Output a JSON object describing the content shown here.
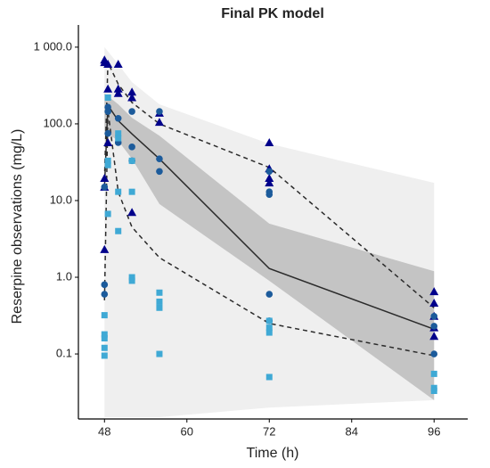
{
  "chart_data": {
    "type": "vpc",
    "title": "Final PK model",
    "xlabel": "Time (h)",
    "ylabel": "Reserpine observations (mg/L)",
    "xlim": [
      44.2,
      100.9
    ],
    "xticks": [
      48,
      60,
      72,
      84,
      96
    ],
    "ylim": [
      0.0142,
      1490
    ],
    "ylog": true,
    "yticks": [
      {
        "value": 1000,
        "label": "1 000.0"
      },
      {
        "value": 100,
        "label": "100.0"
      },
      {
        "value": 10,
        "label": "10.0"
      },
      {
        "value": 1,
        "label": "1.0"
      },
      {
        "value": 0.1,
        "label": "0.1"
      }
    ],
    "bands": [
      {
        "color": "#efefef",
        "x": [
          48,
          50,
          52,
          56,
          72,
          96
        ],
        "upper": [
          1000,
          600,
          350,
          180,
          55,
          17
        ],
        "lower": [
          0.015,
          0.015,
          0.015,
          0.015,
          0.02,
          0.025
        ]
      },
      {
        "color": "#c4c4c4",
        "x": [
          48,
          50,
          52,
          56,
          72,
          96
        ],
        "upper": [
          250,
          180,
          120,
          70,
          5,
          1.2
        ],
        "lower": [
          80,
          60,
          35,
          9,
          0.9,
          0.025
        ]
      }
    ],
    "lines": [
      {
        "style": "solid",
        "color": "#2b2b2b",
        "x": [
          48,
          48.5,
          50,
          52,
          56,
          72,
          96
        ],
        "values": [
          15,
          175,
          110,
          74,
          35,
          1.3,
          0.21
        ]
      },
      {
        "style": "dashed",
        "color": "#2b2b2b",
        "x": [
          48,
          48.5,
          50,
          52,
          56,
          72,
          96
        ],
        "values": [
          0.5,
          150,
          13,
          4.5,
          1.8,
          0.25,
          0.095
        ]
      },
      {
        "style": "dashed",
        "color": "#2b2b2b",
        "x": [
          48,
          48.5,
          50,
          52,
          56,
          72,
          96
        ],
        "values": [
          19,
          630,
          330,
          190,
          100,
          27,
          0.4
        ]
      }
    ],
    "series": [
      {
        "marker": "triangle",
        "color": "#00008b",
        "x": [
          48,
          48,
          48,
          48,
          48,
          48.5,
          48.5,
          48.5,
          50,
          50,
          50,
          52,
          52,
          52,
          56,
          56,
          72,
          72,
          72,
          72,
          96,
          96,
          96,
          96,
          96
        ],
        "values": [
          680,
          630,
          19.5,
          15,
          2.3,
          600,
          285,
          57,
          600,
          285,
          250,
          260,
          220,
          7,
          138,
          105,
          57,
          26,
          19.5,
          17,
          0.65,
          0.46,
          0.31,
          0.22,
          0.17
        ]
      },
      {
        "marker": "circle",
        "color": "#1c5b9b",
        "x": [
          48,
          48,
          48,
          48.5,
          48.5,
          48.5,
          50,
          50,
          52,
          52,
          52,
          56,
          56,
          56,
          72,
          72,
          72,
          72,
          72,
          96,
          96,
          96
        ],
        "values": [
          15,
          0.8,
          0.6,
          165,
          145,
          75,
          118,
          57,
          145,
          50,
          33,
          145,
          35,
          24,
          24,
          13,
          12,
          0.6,
          0.27,
          0.31,
          0.23,
          0.1
        ]
      },
      {
        "marker": "square",
        "color": "#3fa9d5",
        "x": [
          48,
          48,
          48,
          48,
          48,
          48.5,
          48.5,
          48.5,
          48.5,
          50,
          50,
          50,
          50,
          52,
          52,
          52,
          52,
          56,
          56,
          56,
          56,
          72,
          72,
          72,
          72,
          96,
          96,
          96
        ],
        "values": [
          0.32,
          0.18,
          0.16,
          0.12,
          0.095,
          220,
          33,
          29,
          6.7,
          75,
          65,
          13,
          4,
          33,
          13,
          1.0,
          0.9,
          0.63,
          0.48,
          0.4,
          0.1,
          0.27,
          0.22,
          0.19,
          0.05,
          0.055,
          0.036,
          0.033
        ]
      }
    ]
  }
}
